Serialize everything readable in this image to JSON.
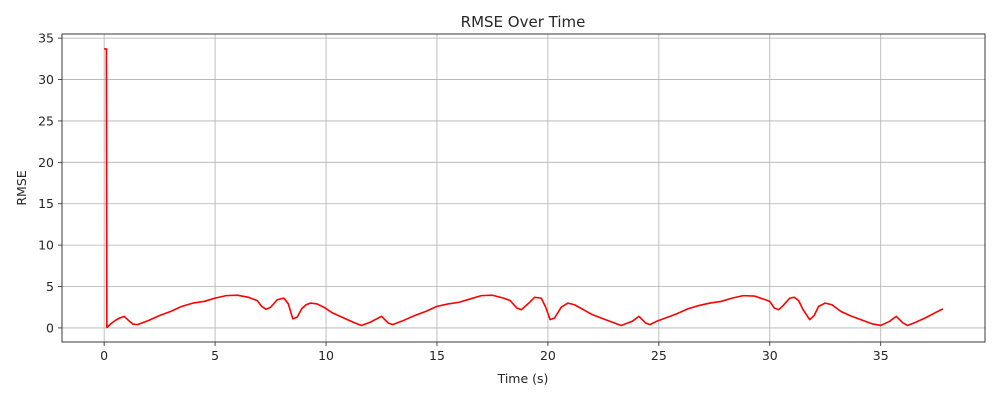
{
  "chart_data": {
    "type": "line",
    "title": "RMSE Over Time",
    "xlabel": "Time (s)",
    "ylabel": "RMSE",
    "xlim": [
      -1.9,
      39.7
    ],
    "ylim": [
      -1.7,
      35.5
    ],
    "xticks": [
      0,
      5,
      10,
      15,
      20,
      25,
      30,
      35
    ],
    "yticks": [
      0,
      5,
      10,
      15,
      20,
      25,
      30,
      35
    ],
    "grid": true,
    "line_color": "#ff0000",
    "series": [
      {
        "x": [
          0.0,
          0.03,
          0.1,
          0.12,
          0.3,
          0.5,
          0.7,
          0.9,
          1.1,
          1.3,
          1.5,
          2.0,
          2.5,
          3.0,
          3.5,
          4.0,
          4.5,
          5.0,
          5.5,
          6.0,
          6.5,
          6.7,
          6.9,
          7.1,
          7.3,
          7.5,
          7.8,
          8.1,
          8.3,
          8.5,
          8.7,
          8.9,
          9.1,
          9.3,
          9.6,
          9.9,
          10.3,
          10.8,
          11.3,
          11.6,
          12.0,
          12.5,
          12.8,
          13.0,
          13.4,
          14.0,
          14.5,
          15.0,
          15.5,
          16.0,
          16.5,
          17.0,
          17.5,
          18.0,
          18.3,
          18.6,
          18.8,
          19.1,
          19.4,
          19.7,
          19.9,
          20.1,
          20.3,
          20.6,
          20.9,
          21.2,
          21.6,
          22.0,
          22.5,
          23.0,
          23.3,
          23.8,
          24.1,
          24.4,
          24.6,
          24.9,
          25.3,
          25.8,
          26.3,
          26.8,
          27.3,
          27.8,
          28.3,
          28.8,
          29.3,
          29.8,
          30.0,
          30.2,
          30.4,
          30.6,
          30.9,
          31.1,
          31.3,
          31.5,
          31.8,
          32.0,
          32.2,
          32.5,
          32.8,
          33.2,
          33.6,
          34.1,
          34.6,
          35.0,
          35.4,
          35.7,
          36.0,
          36.2,
          36.5,
          37.0,
          37.5,
          37.8
        ],
        "y": [
          33.7,
          33.7,
          33.7,
          0.05,
          0.5,
          0.9,
          1.2,
          1.4,
          0.9,
          0.45,
          0.4,
          0.9,
          1.5,
          2.0,
          2.6,
          3.0,
          3.2,
          3.6,
          3.9,
          3.95,
          3.7,
          3.5,
          3.3,
          2.6,
          2.25,
          2.5,
          3.4,
          3.6,
          2.9,
          1.1,
          1.3,
          2.3,
          2.8,
          3.0,
          2.9,
          2.5,
          1.8,
          1.2,
          0.6,
          0.3,
          0.7,
          1.4,
          0.6,
          0.4,
          0.8,
          1.5,
          2.0,
          2.6,
          2.9,
          3.1,
          3.5,
          3.9,
          3.95,
          3.6,
          3.3,
          2.4,
          2.2,
          2.9,
          3.7,
          3.6,
          2.5,
          1.0,
          1.2,
          2.5,
          3.0,
          2.8,
          2.2,
          1.6,
          1.1,
          0.6,
          0.3,
          0.8,
          1.4,
          0.6,
          0.4,
          0.8,
          1.2,
          1.7,
          2.3,
          2.7,
          3.0,
          3.2,
          3.6,
          3.9,
          3.85,
          3.4,
          3.2,
          2.4,
          2.2,
          2.7,
          3.6,
          3.7,
          3.3,
          2.2,
          1.0,
          1.5,
          2.6,
          3.0,
          2.8,
          2.0,
          1.5,
          1.0,
          0.5,
          0.3,
          0.8,
          1.4,
          0.6,
          0.3,
          0.6,
          1.2,
          1.9,
          2.3
        ]
      }
    ]
  }
}
